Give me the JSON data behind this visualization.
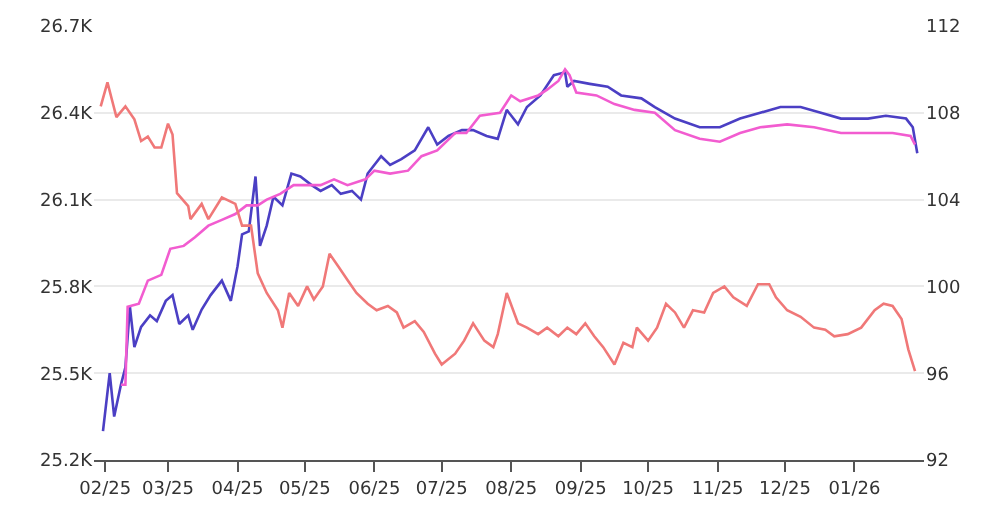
{
  "chart_data": {
    "type": "line",
    "grid": "y",
    "marker": "none",
    "line_style": "solid",
    "xlim": [
      "2025-01-27",
      "2026-02-01"
    ],
    "xticks": [
      {
        "value": "2025-02-01",
        "label": "02/25"
      },
      {
        "value": "2025-03-01",
        "label": "03/25"
      },
      {
        "value": "2025-04-01",
        "label": "04/25"
      },
      {
        "value": "2025-05-01",
        "label": "05/25"
      },
      {
        "value": "2025-06-01",
        "label": "06/25"
      },
      {
        "value": "2025-07-01",
        "label": "07/25"
      },
      {
        "value": "2025-08-01",
        "label": "08/25"
      },
      {
        "value": "2025-09-01",
        "label": "09/25"
      },
      {
        "value": "2025-10-01",
        "label": "10/25"
      },
      {
        "value": "2025-11-01",
        "label": "11/25"
      },
      {
        "value": "2025-12-01",
        "label": "12/25"
      },
      {
        "value": "2026-01-01",
        "label": "01/26"
      }
    ],
    "ylim": [
      25200,
      26700
    ],
    "yticks": [
      {
        "value": 25200,
        "label": "25.2K"
      },
      {
        "value": 25500,
        "label": "25.5K"
      },
      {
        "value": 25800,
        "label": "25.8K"
      },
      {
        "value": 26100,
        "label": "26.1K"
      },
      {
        "value": 26400,
        "label": "26.4K"
      },
      {
        "value": 26700,
        "label": "26.7K"
      }
    ],
    "y2lim": [
      92,
      112
    ],
    "y2ticks": [
      92,
      96,
      100,
      104,
      108,
      112
    ],
    "series": [
      {
        "color": "#4b3fc4",
        "x": [
          "2025-01-31",
          "2025-02-03",
          "2025-02-05",
          "2025-02-08",
          "2025-02-10",
          "2025-02-12",
          "2025-02-14",
          "2025-02-17",
          "2025-02-21",
          "2025-02-24",
          "2025-02-28",
          "2025-03-03",
          "2025-03-06",
          "2025-03-10",
          "2025-03-12",
          "2025-03-16",
          "2025-03-20",
          "2025-03-25",
          "2025-03-29",
          "2025-04-01",
          "2025-04-03",
          "2025-04-06",
          "2025-04-09",
          "2025-04-11",
          "2025-04-14",
          "2025-04-17",
          "2025-04-21",
          "2025-04-25",
          "2025-04-29",
          "2025-05-04",
          "2025-05-08",
          "2025-05-13",
          "2025-05-17",
          "2025-05-22",
          "2025-05-26",
          "2025-05-29",
          "2025-06-04",
          "2025-06-08",
          "2025-06-13",
          "2025-06-19",
          "2025-06-25",
          "2025-06-29",
          "2025-07-04",
          "2025-07-10",
          "2025-07-15",
          "2025-07-21",
          "2025-07-26",
          "2025-07-30",
          "2025-08-04",
          "2025-08-08",
          "2025-08-14",
          "2025-08-20",
          "2025-08-25",
          "2025-08-26",
          "2025-08-29",
          "2025-09-05",
          "2025-09-13",
          "2025-09-19",
          "2025-09-28",
          "2025-10-04",
          "2025-10-13",
          "2025-10-24",
          "2025-11-02",
          "2025-11-11",
          "2025-11-20",
          "2025-11-29",
          "2025-12-08",
          "2025-12-17",
          "2025-12-26",
          "2026-01-07",
          "2026-01-15",
          "2026-01-24",
          "2026-01-27",
          "2026-01-29"
        ],
        "values": [
          25300,
          25500,
          25350,
          25460,
          25520,
          25730,
          25590,
          25660,
          25700,
          25680,
          25750,
          25770,
          25670,
          25700,
          25650,
          25720,
          25770,
          25820,
          25750,
          25870,
          25980,
          25990,
          26180,
          25940,
          26010,
          26110,
          26080,
          26190,
          26180,
          26150,
          26130,
          26150,
          26120,
          26130,
          26100,
          26190,
          26250,
          26220,
          26240,
          26270,
          26350,
          26290,
          26320,
          26340,
          26340,
          26320,
          26310,
          26410,
          26360,
          26420,
          26460,
          26530,
          26540,
          26490,
          26510,
          26500,
          26490,
          26460,
          26450,
          26420,
          26380,
          26350,
          26350,
          26380,
          26400,
          26420,
          26420,
          26400,
          26380,
          26380,
          26390,
          26380,
          26350,
          26260
        ]
      },
      {
        "color": "#f25cd0",
        "x": [
          "2025-02-08",
          "2025-02-10",
          "2025-02-11",
          "2025-02-16",
          "2025-02-20",
          "2025-02-26",
          "2025-03-02",
          "2025-03-08",
          "2025-03-13",
          "2025-03-19",
          "2025-03-25",
          "2025-03-31",
          "2025-04-05",
          "2025-04-10",
          "2025-04-14",
          "2025-04-20",
          "2025-04-26",
          "2025-05-02",
          "2025-05-08",
          "2025-05-14",
          "2025-05-20",
          "2025-05-28",
          "2025-06-01",
          "2025-06-08",
          "2025-06-16",
          "2025-06-22",
          "2025-06-29",
          "2025-07-07",
          "2025-07-12",
          "2025-07-18",
          "2025-07-27",
          "2025-08-01",
          "2025-08-05",
          "2025-08-13",
          "2025-08-17",
          "2025-08-22",
          "2025-08-25",
          "2025-08-27",
          "2025-08-30",
          "2025-09-08",
          "2025-09-16",
          "2025-09-25",
          "2025-10-04",
          "2025-10-13",
          "2025-10-24",
          "2025-11-02",
          "2025-11-11",
          "2025-11-20",
          "2025-12-02",
          "2025-12-14",
          "2025-12-26",
          "2026-01-07",
          "2026-01-18",
          "2026-01-26",
          "2026-01-28"
        ],
        "values": [
          25460,
          25460,
          25730,
          25740,
          25820,
          25840,
          25930,
          25940,
          25970,
          26010,
          26030,
          26050,
          26080,
          26080,
          26100,
          26120,
          26150,
          26150,
          26150,
          26170,
          26150,
          26170,
          26200,
          26190,
          26200,
          26250,
          26270,
          26330,
          26330,
          26390,
          26400,
          26460,
          26440,
          26460,
          26480,
          26510,
          26550,
          26530,
          26470,
          26460,
          26430,
          26410,
          26400,
          26340,
          26310,
          26300,
          26330,
          26350,
          26360,
          26350,
          26330,
          26330,
          26330,
          26320,
          26290
        ]
      },
      {
        "color": "#f07878",
        "axis": "y2",
        "x": [
          "2025-01-30",
          "2025-02-02",
          "2025-02-04",
          "2025-02-06",
          "2025-02-10",
          "2025-02-14",
          "2025-02-17",
          "2025-02-20",
          "2025-02-23",
          "2025-02-26",
          "2025-03-01",
          "2025-03-03",
          "2025-03-05",
          "2025-03-10",
          "2025-03-11",
          "2025-03-16",
          "2025-03-19",
          "2025-03-25",
          "2025-03-31",
          "2025-04-03",
          "2025-04-07",
          "2025-04-10",
          "2025-04-14",
          "2025-04-19",
          "2025-04-21",
          "2025-04-24",
          "2025-04-28",
          "2025-05-02",
          "2025-05-05",
          "2025-05-09",
          "2025-05-12",
          "2025-05-16",
          "2025-05-20",
          "2025-05-24",
          "2025-05-29",
          "2025-06-02",
          "2025-06-07",
          "2025-06-11",
          "2025-06-14",
          "2025-06-19",
          "2025-06-23",
          "2025-06-28",
          "2025-07-01",
          "2025-07-07",
          "2025-07-11",
          "2025-07-15",
          "2025-07-20",
          "2025-07-24",
          "2025-07-26",
          "2025-07-30",
          "2025-08-04",
          "2025-08-08",
          "2025-08-13",
          "2025-08-17",
          "2025-08-22",
          "2025-08-26",
          "2025-08-30",
          "2025-09-03",
          "2025-09-07",
          "2025-09-11",
          "2025-09-16",
          "2025-09-20",
          "2025-09-24",
          "2025-09-26",
          "2025-10-01",
          "2025-10-05",
          "2025-10-09",
          "2025-10-13",
          "2025-10-17",
          "2025-10-21",
          "2025-10-26",
          "2025-10-30",
          "2025-11-04",
          "2025-11-08",
          "2025-11-14",
          "2025-11-19",
          "2025-11-24",
          "2025-11-27",
          "2025-12-02",
          "2025-12-08",
          "2025-12-14",
          "2025-12-19",
          "2025-12-23",
          "2025-12-29",
          "2026-01-04",
          "2026-01-10",
          "2026-01-14",
          "2026-01-18",
          "2026-01-22",
          "2026-01-25",
          "2026-01-28"
        ],
        "values": [
          108.3,
          109.4,
          108.6,
          107.8,
          108.3,
          107.7,
          106.7,
          106.9,
          106.4,
          106.4,
          107.5,
          107.0,
          104.3,
          103.7,
          103.1,
          103.8,
          103.1,
          104.1,
          103.8,
          102.8,
          102.8,
          100.6,
          99.7,
          98.9,
          98.1,
          99.7,
          99.1,
          100.0,
          99.4,
          100.0,
          101.5,
          100.9,
          100.3,
          99.7,
          99.2,
          98.9,
          99.1,
          98.8,
          98.1,
          98.4,
          97.9,
          96.9,
          96.4,
          96.9,
          97.5,
          98.3,
          97.5,
          97.2,
          97.8,
          99.7,
          98.3,
          98.1,
          97.8,
          98.1,
          97.7,
          98.1,
          97.8,
          98.3,
          97.7,
          97.2,
          96.4,
          97.4,
          97.2,
          98.1,
          97.5,
          98.1,
          99.2,
          98.8,
          98.1,
          98.9,
          98.8,
          99.7,
          100.0,
          99.5,
          99.1,
          100.1,
          100.1,
          99.5,
          98.9,
          98.6,
          98.1,
          98.0,
          97.7,
          97.8,
          98.1,
          98.9,
          99.2,
          99.1,
          98.5,
          97.1,
          96.1
        ]
      }
    ]
  }
}
